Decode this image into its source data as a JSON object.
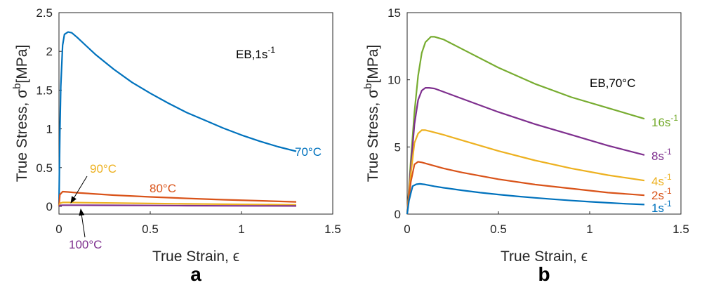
{
  "panels": [
    "a",
    "b"
  ],
  "colors": {
    "blue": "#0072BD",
    "orange": "#D95319",
    "yellow": "#EDB120",
    "purple": "#7E2F8E",
    "green": "#77AC30",
    "axis": "#262626"
  },
  "chart_data": [
    {
      "type": "line",
      "panel": "a",
      "xlabel": "True Strain, ϵ",
      "ylabel_main": "True Stress, σ",
      "ylabel_sup": "b",
      "ylabel_unit": "[MPa]",
      "xlim": [
        0,
        1.5
      ],
      "ylim": [
        -0.1,
        2.5
      ],
      "xticks": [
        0,
        0.5,
        1,
        1.5
      ],
      "xtick_labels": [
        "0",
        "0.5",
        "1",
        "1.5"
      ],
      "yticks": [
        0,
        0.5,
        1,
        1.5,
        2,
        2.5
      ],
      "ytick_labels": [
        "0",
        "0.5",
        "1",
        "1.5",
        "2",
        "2.5"
      ],
      "grid": false,
      "annotation": {
        "main": "EB,1s",
        "sup": "-1"
      },
      "series": [
        {
          "name": "70°C",
          "color": "#0072BD",
          "x": [
            0,
            0.005,
            0.01,
            0.02,
            0.03,
            0.05,
            0.07,
            0.1,
            0.15,
            0.2,
            0.3,
            0.4,
            0.5,
            0.6,
            0.7,
            0.8,
            0.9,
            1.0,
            1.1,
            1.2,
            1.3
          ],
          "y": [
            0,
            0.95,
            1.55,
            2.08,
            2.22,
            2.25,
            2.24,
            2.18,
            2.07,
            1.96,
            1.77,
            1.6,
            1.46,
            1.33,
            1.21,
            1.11,
            1.01,
            0.92,
            0.84,
            0.77,
            0.71
          ]
        },
        {
          "name": "80°C",
          "color": "#D95319",
          "x": [
            0,
            0.005,
            0.02,
            0.05,
            0.1,
            0.3,
            0.5,
            0.7,
            0.9,
            1.1,
            1.3
          ],
          "y": [
            0,
            0.15,
            0.19,
            0.185,
            0.175,
            0.145,
            0.122,
            0.103,
            0.086,
            0.072,
            0.058
          ]
        },
        {
          "name": "90°C",
          "color": "#EDB120",
          "x": [
            0,
            0.005,
            0.02,
            0.05,
            0.1,
            0.3,
            0.5,
            0.7,
            0.9,
            1.1,
            1.3
          ],
          "y": [
            0,
            0.04,
            0.05,
            0.05,
            0.049,
            0.043,
            0.037,
            0.032,
            0.028,
            0.024,
            0.02
          ]
        },
        {
          "name": "100°C",
          "color": "#7E2F8E",
          "x": [
            0,
            0.005,
            0.02,
            0.1,
            0.3,
            0.5,
            0.7,
            0.9,
            1.1,
            1.3
          ],
          "y": [
            0,
            0.012,
            0.015,
            0.015,
            0.013,
            0.011,
            0.009,
            0.007,
            0.006,
            0.005
          ]
        }
      ],
      "labels": [
        "70°C",
        "80°C",
        "90°C",
        "100°C"
      ]
    },
    {
      "type": "line",
      "panel": "b",
      "xlabel": "True Strain, ϵ",
      "ylabel_main": "True Stress, σ",
      "ylabel_sup": "b",
      "ylabel_unit": "[MPa]",
      "xlim": [
        0,
        1.5
      ],
      "ylim": [
        0,
        15
      ],
      "xticks": [
        0,
        0.5,
        1,
        1.5
      ],
      "xtick_labels": [
        "0",
        "0.5",
        "1",
        "1.5"
      ],
      "yticks": [
        0,
        5,
        10,
        15
      ],
      "ytick_labels": [
        "0",
        "5",
        "10",
        "15"
      ],
      "grid": false,
      "annotation": "EB,70°C",
      "series": [
        {
          "name": "16s-1",
          "color": "#77AC30",
          "x": [
            0,
            0.02,
            0.04,
            0.06,
            0.08,
            0.1,
            0.13,
            0.15,
            0.2,
            0.3,
            0.5,
            0.7,
            0.9,
            1.1,
            1.3
          ],
          "y": [
            0,
            4.0,
            7.6,
            10.3,
            12.0,
            12.8,
            13.2,
            13.2,
            13.0,
            12.3,
            10.9,
            9.7,
            8.7,
            7.9,
            7.1
          ]
        },
        {
          "name": "8s-1",
          "color": "#7E2F8E",
          "x": [
            0,
            0.02,
            0.04,
            0.06,
            0.08,
            0.1,
            0.12,
            0.15,
            0.2,
            0.3,
            0.5,
            0.7,
            0.9,
            1.1,
            1.3
          ],
          "y": [
            0,
            3.5,
            6.7,
            8.5,
            9.2,
            9.4,
            9.4,
            9.35,
            9.1,
            8.6,
            7.6,
            6.7,
            5.9,
            5.1,
            4.4
          ]
        },
        {
          "name": "4s-1",
          "color": "#EDB120",
          "x": [
            0,
            0.02,
            0.04,
            0.06,
            0.08,
            0.1,
            0.13,
            0.2,
            0.3,
            0.5,
            0.7,
            0.9,
            1.1,
            1.3
          ],
          "y": [
            0,
            3.0,
            5.3,
            6.0,
            6.25,
            6.25,
            6.15,
            5.9,
            5.5,
            4.7,
            4.0,
            3.4,
            2.9,
            2.5
          ]
        },
        {
          "name": "2s-1",
          "color": "#D95319",
          "x": [
            0,
            0.02,
            0.04,
            0.06,
            0.08,
            0.12,
            0.2,
            0.3,
            0.5,
            0.7,
            0.9,
            1.1,
            1.3
          ],
          "y": [
            0,
            2.4,
            3.7,
            3.9,
            3.85,
            3.7,
            3.4,
            3.1,
            2.6,
            2.2,
            1.9,
            1.6,
            1.4
          ]
        },
        {
          "name": "1s-1",
          "color": "#0072BD",
          "x": [
            0,
            0.01,
            0.02,
            0.03,
            0.05,
            0.07,
            0.1,
            0.15,
            0.2,
            0.3,
            0.4,
            0.5,
            0.6,
            0.7,
            0.8,
            0.9,
            1.0,
            1.1,
            1.2,
            1.3
          ],
          "y": [
            0,
            1.0,
            1.55,
            2.08,
            2.22,
            2.25,
            2.2,
            2.07,
            1.96,
            1.77,
            1.6,
            1.46,
            1.33,
            1.21,
            1.11,
            1.01,
            0.92,
            0.84,
            0.77,
            0.71
          ]
        }
      ],
      "labels": [
        {
          "main": "16s",
          "sup": "-1"
        },
        {
          "main": "8s",
          "sup": "-1"
        },
        {
          "main": "4s",
          "sup": "-1"
        },
        {
          "main": "2s",
          "sup": "-1"
        },
        {
          "main": "1s",
          "sup": "-1"
        }
      ]
    }
  ]
}
